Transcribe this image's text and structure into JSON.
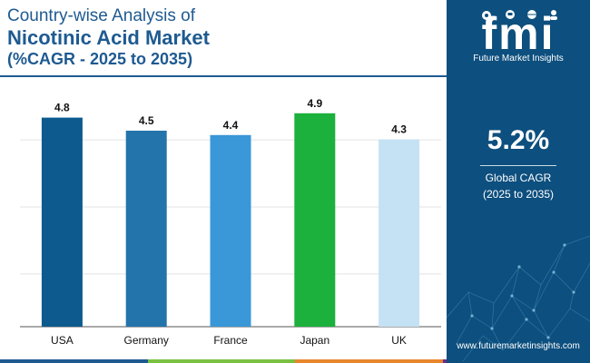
{
  "title": {
    "line1": "Country-wise Analysis of",
    "line2": "Nicotinic Acid Market",
    "line3": "(%CAGR - 2025 to 2035)"
  },
  "brand": {
    "logo_letters": "fmi",
    "logo_text": "Future Market Insights",
    "website": "www.futuremarketinsights.com",
    "logo_icons": [
      "gear-icon",
      "chat-icon",
      "globe-icon",
      "person-icon"
    ]
  },
  "summary": {
    "value": "5.2%",
    "label_line1": "Global CAGR",
    "label_line2": "(2025 to 2035)"
  },
  "colors": {
    "title": "#1e5a91",
    "sidebar": "#0d4f7e",
    "bottom_strip": [
      "#1e5a91",
      "#7ac143",
      "#e8862d",
      "#6b2f8f"
    ]
  },
  "chart_data": {
    "type": "bar",
    "categories": [
      "USA",
      "Germany",
      "France",
      "Japan",
      "UK"
    ],
    "values": [
      4.8,
      4.5,
      4.4,
      4.9,
      4.3
    ],
    "data_labels": [
      "4.8",
      "4.5",
      "4.4",
      "4.9",
      "4.3"
    ],
    "bar_colors": [
      "#0d5a8e",
      "#2474ac",
      "#3a97d8",
      "#1cb03c",
      "#c5e2f5"
    ],
    "ylim": [
      0,
      5.5
    ],
    "grid": true
  }
}
